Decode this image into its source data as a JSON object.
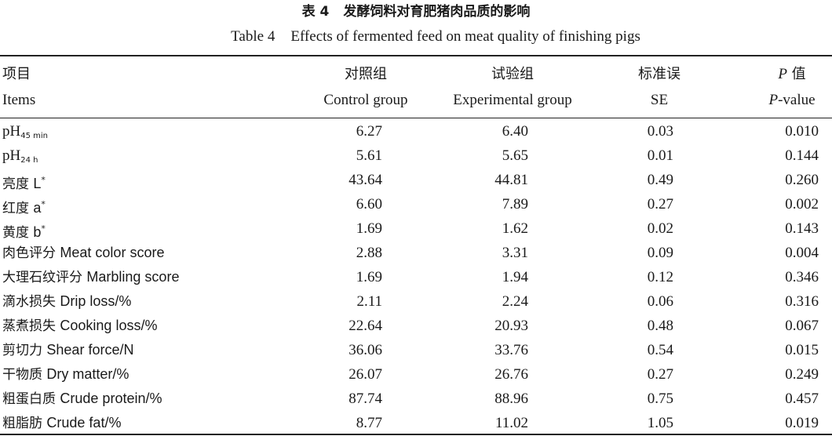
{
  "title_cn": {
    "label": "表 4",
    "text": "发酵饲料对育肥猪肉品质的影响"
  },
  "title_en": {
    "label": "Table 4",
    "text": "Effects of fermented feed on meat quality of finishing pigs"
  },
  "headers": {
    "cn": [
      "项目",
      "对照组",
      "试验组",
      "标准误",
      "P",
      "值"
    ],
    "en": [
      "Items",
      "Control group",
      "Experimental group",
      "SE",
      "P",
      "-value"
    ]
  },
  "rows": [
    {
      "cn": "",
      "en": "pH",
      "sub": "45 min",
      "sup": "",
      "values": [
        "6.27",
        "6.40",
        "0.03",
        "0.010"
      ]
    },
    {
      "cn": "",
      "en": "pH",
      "sub": "24 h",
      "sup": "",
      "values": [
        "5.61",
        "5.65",
        "0.01",
        "0.144"
      ]
    },
    {
      "cn": "亮度",
      "en": "L",
      "sub": "",
      "sup": "*",
      "values": [
        "43.64",
        "44.81",
        "0.49",
        "0.260"
      ]
    },
    {
      "cn": "红度",
      "en": "a",
      "sub": "",
      "sup": "*",
      "values": [
        "6.60",
        "7.89",
        "0.27",
        "0.002"
      ]
    },
    {
      "cn": "黄度",
      "en": "b",
      "sub": "",
      "sup": "*",
      "values": [
        "1.69",
        "1.62",
        "0.02",
        "0.143"
      ]
    },
    {
      "cn": "肉色评分",
      "en": "Meat color score",
      "sub": "",
      "sup": "",
      "values": [
        "2.88",
        "3.31",
        "0.09",
        "0.004"
      ]
    },
    {
      "cn": "大理石纹评分",
      "en": "Marbling score",
      "sub": "",
      "sup": "",
      "values": [
        "1.69",
        "1.94",
        "0.12",
        "0.346"
      ]
    },
    {
      "cn": "滴水损失",
      "en": "Drip loss/%",
      "sub": "",
      "sup": "",
      "values": [
        "2.11",
        "2.24",
        "0.06",
        "0.316"
      ]
    },
    {
      "cn": "蒸煮损失",
      "en": "Cooking loss/%",
      "sub": "",
      "sup": "",
      "values": [
        "22.64",
        "20.93",
        "0.48",
        "0.067"
      ]
    },
    {
      "cn": "剪切力",
      "en": "Shear force/N",
      "sub": "",
      "sup": "",
      "values": [
        "36.06",
        "33.76",
        "0.54",
        "0.015"
      ]
    },
    {
      "cn": "干物质",
      "en": "Dry matter/%",
      "sub": "",
      "sup": "",
      "values": [
        "26.07",
        "26.76",
        "0.27",
        "0.249"
      ]
    },
    {
      "cn": "粗蛋白质",
      "en": "Crude protein/%",
      "sub": "",
      "sup": "",
      "values": [
        "87.74",
        "88.96",
        "0.75",
        "0.457"
      ]
    },
    {
      "cn": "粗脂肪",
      "en": "Crude fat/%",
      "sub": "",
      "sup": "",
      "values": [
        "8.77",
        "11.02",
        "1.05",
        "0.019"
      ]
    }
  ]
}
